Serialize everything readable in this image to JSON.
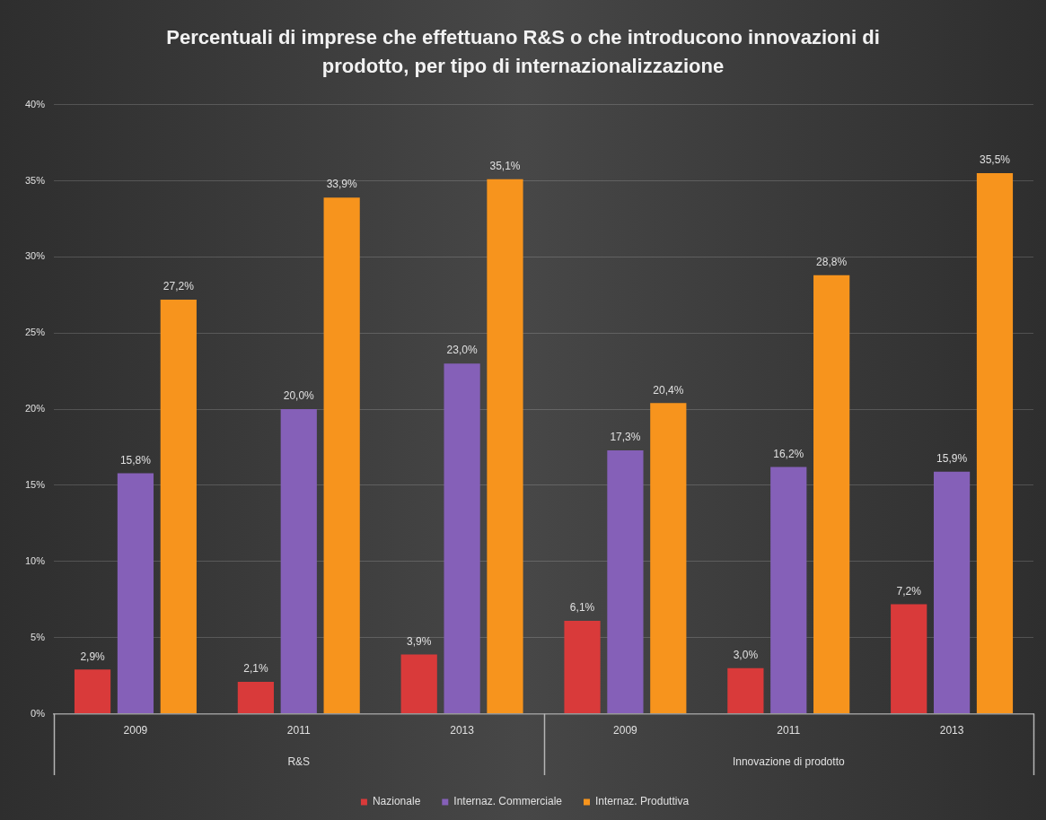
{
  "chart_data": {
    "type": "bar",
    "title": "Percentuali di imprese che effettuano R&S o che introducono innovazioni di prodotto, per tipo di internazionalizzazione",
    "categories": [
      "2009",
      "2011",
      "2013",
      "2009",
      "2011",
      "2013"
    ],
    "annotations": [
      "R&S",
      "Innovazione di prodotto"
    ],
    "series": [
      {
        "name": "Nazionale",
        "color": "#d93a3a",
        "values": [
          2.9,
          2.1,
          3.9,
          6.1,
          3.0,
          7.2
        ],
        "value_labels": [
          "2,9%",
          "2,1%",
          "3,9%",
          "6,1%",
          "3,0%",
          "7,2%"
        ]
      },
      {
        "name": "Internaz. Commerciale",
        "color": "#8560b8",
        "values": [
          15.8,
          20.0,
          23.0,
          17.3,
          16.2,
          15.9
        ],
        "value_labels": [
          "15,8%",
          "20,0%",
          "23,0%",
          "17,3%",
          "16,2%",
          "15,9%"
        ]
      },
      {
        "name": "Internaz. Produttiva",
        "color": "#f7941d",
        "values": [
          27.2,
          33.9,
          35.1,
          20.4,
          28.8,
          35.5
        ],
        "value_labels": [
          "27,2%",
          "33,9%",
          "35,1%",
          "20,4%",
          "28,8%",
          "35,5%"
        ]
      }
    ],
    "ylim": [
      0,
      40
    ],
    "yticks": [
      {
        "value": 0,
        "label": "0%"
      },
      {
        "value": 5,
        "label": "5%"
      },
      {
        "value": 10,
        "label": "10%"
      },
      {
        "value": 15,
        "label": "15%"
      },
      {
        "value": 20,
        "label": "20%"
      },
      {
        "value": 25,
        "label": "25%"
      },
      {
        "value": 30,
        "label": "30%"
      },
      {
        "value": 35,
        "label": "35%"
      },
      {
        "value": 40,
        "label": "40%"
      }
    ],
    "grid": "y",
    "legend": "bottom"
  }
}
